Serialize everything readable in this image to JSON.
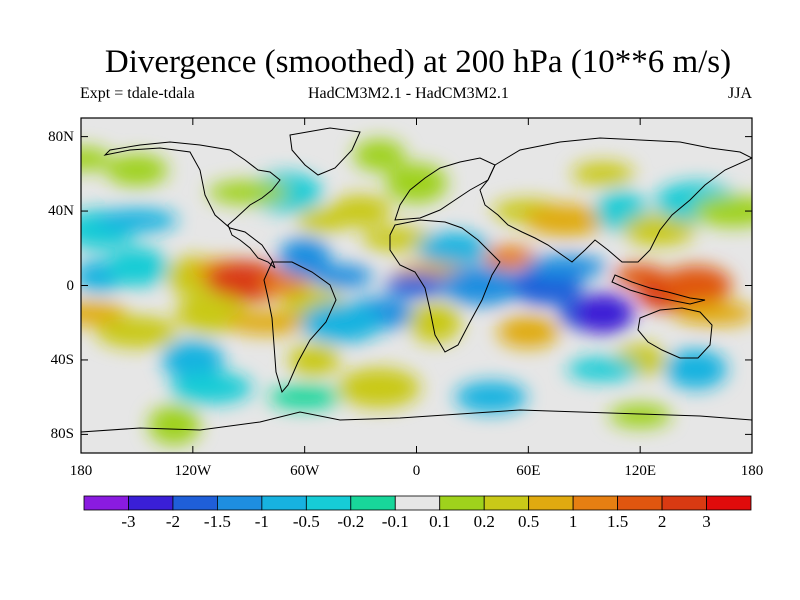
{
  "title": "Divergence (smoothed) at 200 hPa (10**6 m/s)",
  "subtitle_left": "Expt = tdale-tdala",
  "subtitle_center": "HadCM3M2.1 - HadCM3M2.1",
  "subtitle_right": "JJA",
  "lat_ticks": [
    "80N",
    "40N",
    "0",
    "40S",
    "80S"
  ],
  "lon_ticks": [
    "180",
    "120W",
    "60W",
    "0",
    "60E",
    "120E",
    "180"
  ],
  "colorbar": {
    "labels": [
      "-3",
      "-2",
      "-1.5",
      "-1",
      "-0.5",
      "-0.2",
      "-0.1",
      "0.1",
      "0.2",
      "0.5",
      "1",
      "1.5",
      "2",
      "3"
    ],
    "colors": [
      "#8a1be0",
      "#3a1fd6",
      "#1f5fd9",
      "#1e8ee0",
      "#17b2e0",
      "#16ccd6",
      "#18d69a",
      "#e6e6e6",
      "#9fd21c",
      "#c9c918",
      "#e0aa10",
      "#e67f12",
      "#e0560f",
      "#d93a12",
      "#e00b0b"
    ]
  },
  "background_color": "#e6e6e6",
  "blobs": [
    {
      "lon": -178,
      "lat": 68,
      "c": 8
    },
    {
      "lon": -150,
      "lat": 62,
      "c": 8
    },
    {
      "lon": -170,
      "lat": 30,
      "c": 5
    },
    {
      "lon": -150,
      "lat": 35,
      "c": 4
    },
    {
      "lon": -170,
      "lat": 5,
      "c": 4
    },
    {
      "lon": -150,
      "lat": 10,
      "c": 5
    },
    {
      "lon": -175,
      "lat": -15,
      "c": 10
    },
    {
      "lon": -150,
      "lat": -25,
      "c": 9
    },
    {
      "lon": -120,
      "lat": 5,
      "c": 9
    },
    {
      "lon": -105,
      "lat": 8,
      "c": 10
    },
    {
      "lon": -95,
      "lat": 5,
      "c": 12
    },
    {
      "lon": -90,
      "lat": 2,
      "c": 13
    },
    {
      "lon": -70,
      "lat": 0,
      "c": 11
    },
    {
      "lon": -55,
      "lat": -10,
      "c": 9
    },
    {
      "lon": -110,
      "lat": -15,
      "c": 9
    },
    {
      "lon": -80,
      "lat": -20,
      "c": 10
    },
    {
      "lon": -55,
      "lat": -40,
      "c": 9
    },
    {
      "lon": -120,
      "lat": -40,
      "c": 4
    },
    {
      "lon": -60,
      "lat": -60,
      "c": 6
    },
    {
      "lon": -110,
      "lat": -55,
      "c": 5
    },
    {
      "lon": -60,
      "lat": 15,
      "c": 3
    },
    {
      "lon": -40,
      "lat": 5,
      "c": 3
    },
    {
      "lon": -20,
      "lat": -15,
      "c": 3
    },
    {
      "lon": -40,
      "lat": -20,
      "c": 4
    },
    {
      "lon": -50,
      "lat": 35,
      "c": 9
    },
    {
      "lon": -30,
      "lat": 40,
      "c": 9
    },
    {
      "lon": -70,
      "lat": 50,
      "c": 5
    },
    {
      "lon": -90,
      "lat": 50,
      "c": 8
    },
    {
      "lon": -20,
      "lat": 70,
      "c": 8
    },
    {
      "lon": 0,
      "lat": 55,
      "c": 8
    },
    {
      "lon": -10,
      "lat": 25,
      "c": 9
    },
    {
      "lon": 10,
      "lat": 5,
      "c": 10
    },
    {
      "lon": 10,
      "lat": -20,
      "c": 9
    },
    {
      "lon": 0,
      "lat": 0,
      "c": 2
    },
    {
      "lon": 20,
      "lat": 20,
      "c": 4
    },
    {
      "lon": 35,
      "lat": 0,
      "c": 3
    },
    {
      "lon": 50,
      "lat": 15,
      "c": 11
    },
    {
      "lon": 60,
      "lat": -25,
      "c": 10
    },
    {
      "lon": 70,
      "lat": 0,
      "c": 2
    },
    {
      "lon": 80,
      "lat": 10,
      "c": 3
    },
    {
      "lon": 90,
      "lat": -15,
      "c": 2
    },
    {
      "lon": 100,
      "lat": -15,
      "c": 1
    },
    {
      "lon": 60,
      "lat": 40,
      "c": 9
    },
    {
      "lon": 80,
      "lat": 35,
      "c": 10
    },
    {
      "lon": 110,
      "lat": 40,
      "c": 5
    },
    {
      "lon": 100,
      "lat": 60,
      "c": 9
    },
    {
      "lon": 130,
      "lat": 30,
      "c": 9
    },
    {
      "lon": 150,
      "lat": 45,
      "c": 5
    },
    {
      "lon": 120,
      "lat": 5,
      "c": 12
    },
    {
      "lon": 135,
      "lat": -5,
      "c": 13
    },
    {
      "lon": 150,
      "lat": 0,
      "c": 12
    },
    {
      "lon": 160,
      "lat": -15,
      "c": 10
    },
    {
      "lon": 120,
      "lat": -40,
      "c": 9
    },
    {
      "lon": 150,
      "lat": -45,
      "c": 4
    },
    {
      "lon": 100,
      "lat": -45,
      "c": 5
    },
    {
      "lon": 170,
      "lat": 40,
      "c": 8
    },
    {
      "lon": -130,
      "lat": -75,
      "c": 8
    },
    {
      "lon": 120,
      "lat": -70,
      "c": 8
    },
    {
      "lon": 40,
      "lat": -60,
      "c": 4
    },
    {
      "lon": -20,
      "lat": -55,
      "c": 9
    }
  ]
}
